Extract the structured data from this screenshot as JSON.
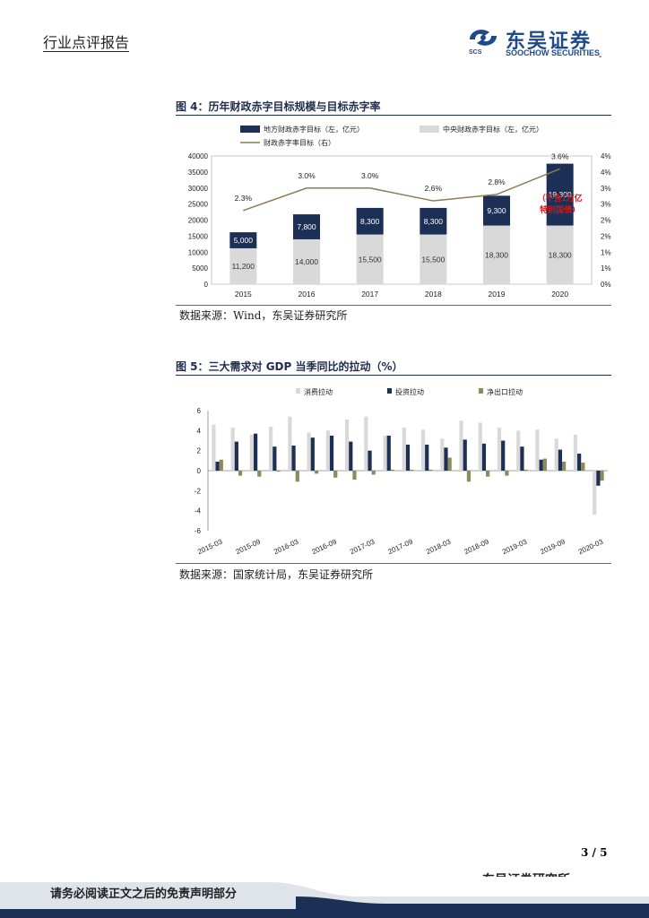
{
  "header": {
    "report_type": "行业点评报告",
    "brand_name": "东吴证券",
    "brand_english": "SOOCHOW SECURITIES",
    "brand_abbr": "SCS",
    "corner_mark": "-"
  },
  "figure4": {
    "title": "图 4：历年财政赤字目标规模与目标赤字率",
    "source": "数据来源：Wind，东吴证券研究所",
    "annotation_lines": [
      "（不含1万亿",
      "特别国债）"
    ]
  },
  "figure5": {
    "title": "图 5：三大需求对 GDP 当季同比的拉动（%）",
    "source": "数据来源：国家统计局，东吴证券研究所"
  },
  "footer": {
    "page_number": "3 / 5",
    "institute": "东吴证券研究所",
    "disclaimer": "请务必阅读正文之后的免责声明部分"
  },
  "colors": {
    "navy": "#1c2f55",
    "light_gray": "#d9d9d9",
    "olive_line": "#8b7d4f",
    "olive_bar": "#8e8a5c",
    "red_annotation": "#d01818",
    "brand_blue": "#1e4a8c"
  },
  "chart_data": [
    {
      "type": "bar",
      "stacked": true,
      "categories": [
        "2015",
        "2016",
        "2017",
        "2018",
        "2019",
        "2020"
      ],
      "series": [
        {
          "name": "中央财政赤字目标（左，亿元）",
          "values": [
            11200,
            14000,
            15500,
            15500,
            18300,
            18300
          ],
          "color": "#d9d9d9"
        },
        {
          "name": "地方财政赤字目标（左，亿元）",
          "values": [
            5000,
            7800,
            8300,
            8300,
            9300,
            19300
          ],
          "color": "#1c2f55"
        }
      ],
      "line_series": {
        "name": "财政赤字率目标（右）",
        "values": [
          2.3,
          3.0,
          3.0,
          2.6,
          2.8,
          3.6
        ],
        "labels": [
          "2.3%",
          "3.0%",
          "3.0%",
          "2.6%",
          "2.8%",
          "3.6%"
        ],
        "color": "#8b7d4f"
      },
      "bar_labels": {
        "central": [
          "11,200",
          "14,000",
          "15,500",
          "15,500",
          "18,300",
          "18,300"
        ],
        "local": [
          "5,000",
          "7,800",
          "8,300",
          "8,300",
          "9,300",
          "19,300"
        ]
      },
      "ylim": [
        0,
        40000
      ],
      "yticks": [
        "0",
        "5000",
        "10000",
        "15000",
        "20000",
        "25000",
        "30000",
        "35000",
        "40000"
      ],
      "y2lim": [
        0,
        4
      ],
      "y2ticks": [
        "0%",
        "1%",
        "1%",
        "2%",
        "2%",
        "3%",
        "3%",
        "4%",
        "4%"
      ],
      "legend": "top"
    },
    {
      "type": "bar",
      "categories": [
        "2015-03",
        "2015-06",
        "2015-09",
        "2015-12",
        "2016-03",
        "2016-06",
        "2016-09",
        "2016-12",
        "2017-03",
        "2017-06",
        "2017-09",
        "2017-12",
        "2018-03",
        "2018-06",
        "2018-09",
        "2018-12",
        "2019-03",
        "2019-06",
        "2019-09",
        "2019-12",
        "2020-03"
      ],
      "xticks": [
        "2015-03",
        "2015-09",
        "2016-03",
        "2016-09",
        "2017-03",
        "2017-09",
        "2018-03",
        "2018-09",
        "2019-03",
        "2019-09",
        "2020-03"
      ],
      "series": [
        {
          "name": "消费拉动",
          "color": "#d9d9d9",
          "values": [
            4.6,
            4.3,
            3.6,
            4.4,
            5.4,
            3.8,
            4.0,
            5.1,
            5.4,
            3.5,
            4.3,
            4.1,
            3.2,
            5.0,
            4.8,
            4.3,
            4.0,
            4.1,
            3.2,
            3.6,
            -4.4
          ]
        },
        {
          "name": "投资拉动",
          "color": "#1c2f55",
          "values": [
            0.9,
            2.9,
            3.7,
            2.4,
            2.5,
            3.3,
            3.5,
            2.9,
            2.0,
            3.5,
            2.6,
            2.6,
            2.3,
            3.1,
            2.7,
            3.0,
            2.4,
            1.1,
            2.1,
            1.7,
            -1.5
          ]
        },
        {
          "name": "净出口拉动",
          "color": "#8e8a5c",
          "values": [
            1.1,
            -0.5,
            -0.6,
            -0.1,
            -1.1,
            -0.3,
            -0.7,
            -0.9,
            -0.4,
            0.1,
            0.1,
            0.1,
            1.3,
            -1.1,
            -0.6,
            -0.5,
            0.1,
            1.2,
            0.9,
            0.8,
            -1.0
          ]
        }
      ],
      "ylim": [
        -6,
        6
      ],
      "yticks": [
        "-6",
        "-4",
        "-2",
        "0",
        "2",
        "4",
        "6"
      ],
      "legend": "top"
    }
  ]
}
